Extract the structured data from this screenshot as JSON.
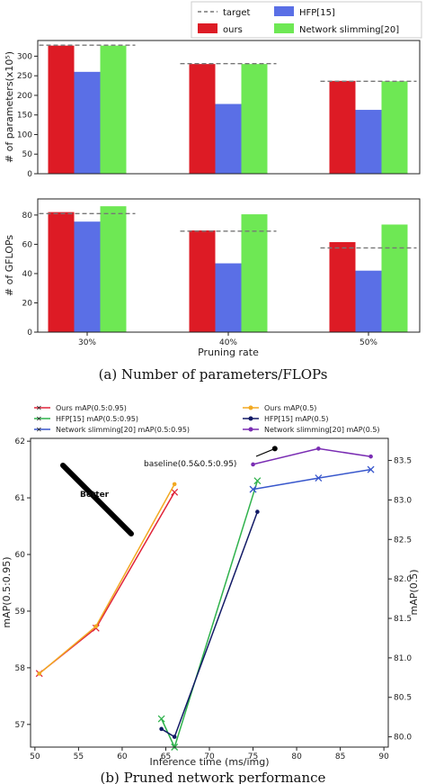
{
  "chart_data": [
    {
      "type": "bar",
      "categories": [
        "30%",
        "40%",
        "50%"
      ],
      "ylabel": "# of parameters(x10⁵)",
      "ylim": [
        0,
        340
      ],
      "yticks": [
        0,
        50,
        100,
        150,
        200,
        250,
        300
      ],
      "series": [
        {
          "name": "ours",
          "values": [
            327,
            280,
            237
          ],
          "color": "#dd1b25"
        },
        {
          "name": "HFP[15]",
          "values": [
            260,
            178,
            163
          ],
          "color": "#5a6fe6"
        },
        {
          "name": "Network slimming[20]",
          "values": [
            327,
            280,
            236
          ],
          "color": "#6ee854"
        }
      ],
      "target": {
        "name": "target",
        "values": [
          328,
          281,
          236
        ],
        "color": "#777777"
      },
      "legend": "top-right"
    },
    {
      "type": "bar",
      "categories": [
        "30%",
        "40%",
        "50%"
      ],
      "xlabel": "Pruning rate",
      "ylabel": "# of GFLOPs",
      "ylim": [
        0,
        91
      ],
      "yticks": [
        0,
        20,
        40,
        60,
        80
      ],
      "series": [
        {
          "name": "ours",
          "values": [
            82,
            69.5,
            61.5
          ],
          "color": "#dd1b25"
        },
        {
          "name": "HFP[15]",
          "values": [
            75.5,
            47,
            42
          ],
          "color": "#5a6fe6"
        },
        {
          "name": "Network slimming[20]",
          "values": [
            86,
            80.5,
            73.5
          ],
          "color": "#6ee854"
        }
      ],
      "target": {
        "name": "target",
        "values": [
          81,
          69,
          57.5
        ],
        "color": "#777777"
      }
    },
    {
      "type": "line",
      "xlabel": "Inference time (ms/img)",
      "ylabel": "mAP(0.5:0.95)",
      "y2label": "mAP(0.5)",
      "xlim": [
        49.5,
        90.5
      ],
      "xticks": [
        50,
        55,
        60,
        65,
        70,
        75,
        80,
        85,
        90
      ],
      "ylim": [
        56.6,
        62.05
      ],
      "yticks": [
        57,
        58,
        59,
        60,
        61,
        62
      ],
      "y2lim": [
        79.87,
        83.78
      ],
      "y2ticks": [
        80.0,
        80.5,
        81.0,
        81.5,
        82.0,
        82.5,
        83.0,
        83.5
      ],
      "series": [
        {
          "name": "Ours mAP(0.5:0.95)",
          "axis": "left",
          "marker": "x",
          "color": "#e0243a",
          "x": [
            50.5,
            57,
            66
          ],
          "y": [
            57.9,
            58.7,
            61.1
          ]
        },
        {
          "name": "HFP[15] mAP(0.5:0.95)",
          "axis": "left",
          "marker": "x",
          "color": "#2fb24c",
          "x": [
            64.5,
            66,
            75.5
          ],
          "y": [
            57.1,
            56.6,
            61.3
          ]
        },
        {
          "name": "Network slimming[20] mAP(0.5:0.95)",
          "axis": "left",
          "marker": "x",
          "color": "#3857cc",
          "x": [
            75,
            82.5,
            88.5
          ],
          "y": [
            61.15,
            61.35,
            61.5
          ]
        },
        {
          "name": "Ours mAP(0.5)",
          "axis": "right",
          "marker": "o",
          "color": "#f2a922",
          "x": [
            50.5,
            57,
            66
          ],
          "y": [
            80.8,
            81.4,
            83.2
          ]
        },
        {
          "name": "HFP[15] mAP(0.5)",
          "axis": "right",
          "marker": "o",
          "color": "#121a66",
          "x": [
            64.5,
            66,
            75.5
          ],
          "y": [
            80.1,
            80.0,
            82.85
          ]
        },
        {
          "name": "Network slimming[20] mAP(0.5)",
          "axis": "right",
          "marker": "o",
          "color": "#7a2db3",
          "x": [
            75,
            82.5,
            88.5
          ],
          "y": [
            83.45,
            83.65,
            83.55
          ]
        }
      ],
      "baseline": {
        "label": "baseline(0.5&0.5:0.95)",
        "x": 77.5,
        "y": 83.65
      },
      "annotation": "Better"
    }
  ],
  "captions": {
    "a": "(a) Number of parameters/FLOPs",
    "b": "(b) Pruned network performance"
  }
}
